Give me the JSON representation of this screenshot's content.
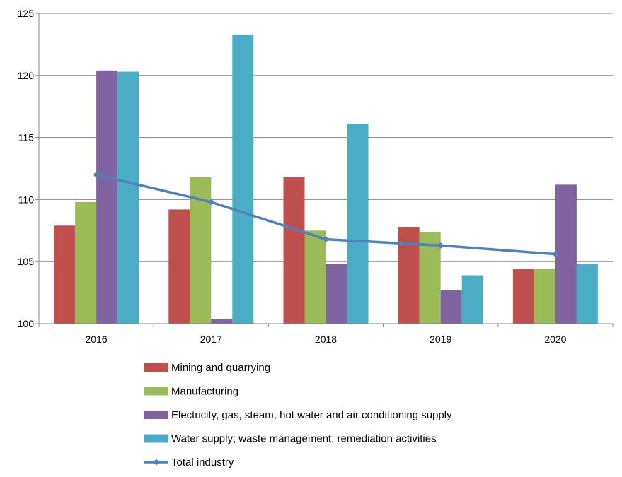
{
  "chart_data": {
    "type": "bar",
    "title": "",
    "xlabel": "",
    "ylabel": "",
    "categories": [
      "2016",
      "2017",
      "2018",
      "2019",
      "2020"
    ],
    "ylim": [
      100,
      125
    ],
    "yticks": [
      100,
      105,
      110,
      115,
      120,
      125
    ],
    "grid": true,
    "legend_position": "bottom",
    "series": [
      {
        "name": "Mining and quarrying",
        "kind": "bar",
        "color": "#c0504d",
        "values": [
          107.9,
          109.2,
          111.8,
          107.8,
          104.4
        ]
      },
      {
        "name": "Manufacturing",
        "kind": "bar",
        "color": "#9bbb59",
        "values": [
          109.8,
          111.8,
          107.5,
          107.4,
          104.4
        ]
      },
      {
        "name": "Electricity, gas, steam, hot water and air conditioning supply",
        "kind": "bar",
        "color": "#8064a2",
        "values": [
          120.4,
          100.4,
          104.8,
          102.7,
          111.2
        ]
      },
      {
        "name": "Water supply; waste management; remediation activities",
        "kind": "bar",
        "color": "#4bacc6",
        "values": [
          120.3,
          123.3,
          116.1,
          103.9,
          104.8
        ]
      },
      {
        "name": "Total industry",
        "kind": "line",
        "color": "#4f81bd",
        "values": [
          112.0,
          109.8,
          106.8,
          106.3,
          105.6
        ]
      }
    ]
  }
}
